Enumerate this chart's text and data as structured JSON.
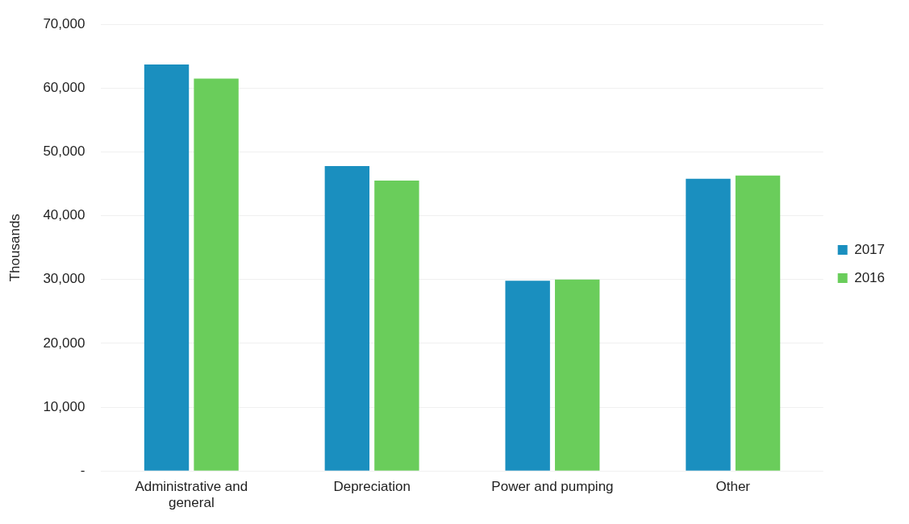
{
  "chart_data": {
    "type": "bar",
    "ylabel": "Thousands",
    "categories": [
      "Administrative and general",
      "Depreciation",
      "Power and pumping",
      "Other"
    ],
    "series": [
      {
        "name": "2017",
        "color": "#1a8fbf",
        "values": [
          63700,
          47800,
          29800,
          45800
        ]
      },
      {
        "name": "2016",
        "color": "#6acd5b",
        "values": [
          61500,
          45500,
          30000,
          46300
        ]
      }
    ],
    "ylim": [
      0,
      70000
    ],
    "yticks": [
      {
        "value": 0,
        "label": "-"
      },
      {
        "value": 10000,
        "label": "10,000"
      },
      {
        "value": 20000,
        "label": "20,000"
      },
      {
        "value": 30000,
        "label": "30,000"
      },
      {
        "value": 40000,
        "label": "40,000"
      },
      {
        "value": 50000,
        "label": "50,000"
      },
      {
        "value": 60000,
        "label": "60,000"
      },
      {
        "value": 70000,
        "label": "70,000"
      }
    ],
    "grid": "y",
    "legend": "right"
  }
}
